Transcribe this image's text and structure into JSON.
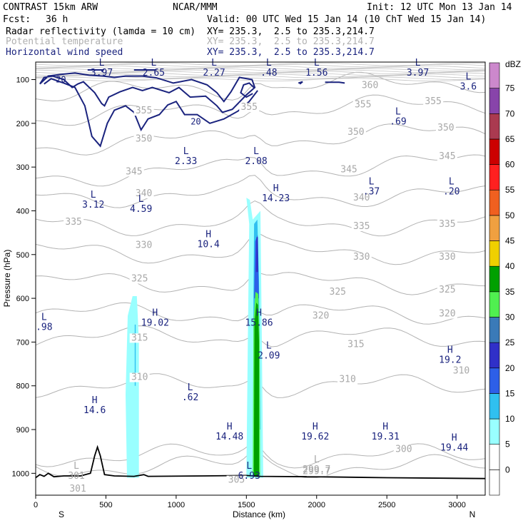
{
  "header": {
    "title": "CONTRAST 15km ARW",
    "org": "NCAR/MMM",
    "init": "Init: 12 UTC Mon 13 Jan 14",
    "fcst_label": "Fcst:",
    "fcst_value": "36 h",
    "valid": "Valid: 00 UTC Wed 15 Jan 14 (10 ChT Wed 15 Jan 14)",
    "fields": [
      {
        "name": "Radar reflectivity (lamda = 10 cm)",
        "xy": "XY= 235.3,  2.5 to 235.3,214.7",
        "color": "#000000"
      },
      {
        "name": "Potential temperature",
        "xy": "XY= 235.3,  2.5 to 235.3,214.7",
        "color": "#b0b0b0"
      },
      {
        "name": "Horizontal wind speed",
        "xy": "XY= 235.3,  2.5 to 235.3,214.7",
        "color": "#1a237e"
      }
    ]
  },
  "chart_data": {
    "type": "cross-section",
    "xlabel": "Distance (km)",
    "ylabel": "Pressure (hPa)",
    "xlim": [
      0,
      3200
    ],
    "ylim": [
      1050,
      60
    ],
    "x_ticks": [
      "0",
      "500",
      "1000",
      "1500",
      "2000",
      "2500",
      "3000"
    ],
    "y_ticks": [
      "100",
      "200",
      "300",
      "400",
      "500",
      "600",
      "700",
      "800",
      "900",
      "1000"
    ],
    "end_labels": {
      "left": "S",
      "right": "N"
    },
    "colorbar": {
      "title": "dBZ",
      "levels": [
        "0",
        "5",
        "10",
        "15",
        "20",
        "25",
        "30",
        "35",
        "40",
        "45",
        "50",
        "55",
        "60",
        "65",
        "70",
        "75"
      ],
      "colors": [
        "#ffffff",
        "#99ffff",
        "#30c0f0",
        "#2d5fe8",
        "#3030c8",
        "#3a7ab8",
        "#50f050",
        "#00a000",
        "#f0d000",
        "#f0a040",
        "#f06020",
        "#ff2020",
        "#cc0000",
        "#aa3a50",
        "#8844aa",
        "#cc88cc"
      ]
    },
    "theta_contours": [
      300,
      305,
      310,
      315,
      320,
      325,
      330,
      335,
      340,
      345,
      350,
      355,
      360
    ],
    "theta_labels": [
      {
        "text": "360",
        "x": 2380,
        "p": 118
      },
      {
        "text": "355",
        "x": 2830,
        "p": 155
      },
      {
        "text": "355",
        "x": 2330,
        "p": 162
      },
      {
        "text": "355",
        "x": 1520,
        "p": 168
      },
      {
        "text": "355",
        "x": 770,
        "p": 176
      },
      {
        "text": "350",
        "x": 2920,
        "p": 215
      },
      {
        "text": "350",
        "x": 2280,
        "p": 225
      },
      {
        "text": "350",
        "x": 770,
        "p": 240
      },
      {
        "text": "345",
        "x": 2930,
        "p": 280
      },
      {
        "text": "345",
        "x": 2230,
        "p": 310
      },
      {
        "text": "345",
        "x": 700,
        "p": 315
      },
      {
        "text": "340",
        "x": 2320,
        "p": 375
      },
      {
        "text": "340",
        "x": 770,
        "p": 365
      },
      {
        "text": "335",
        "x": 2930,
        "p": 435
      },
      {
        "text": "335",
        "x": 2320,
        "p": 440
      },
      {
        "text": "335",
        "x": 270,
        "p": 430
      },
      {
        "text": "330",
        "x": 2930,
        "p": 510
      },
      {
        "text": "330",
        "x": 2320,
        "p": 510
      },
      {
        "text": "330",
        "x": 770,
        "p": 483
      },
      {
        "text": "325",
        "x": 2930,
        "p": 585
      },
      {
        "text": "325",
        "x": 2150,
        "p": 590
      },
      {
        "text": "325",
        "x": 740,
        "p": 560
      },
      {
        "text": "320",
        "x": 2930,
        "p": 640
      },
      {
        "text": "320",
        "x": 2030,
        "p": 645
      },
      {
        "text": "315",
        "x": 2280,
        "p": 710
      },
      {
        "text": "315",
        "x": 740,
        "p": 695
      },
      {
        "text": "310",
        "x": 3030,
        "p": 770
      },
      {
        "text": "310",
        "x": 2220,
        "p": 790
      },
      {
        "text": "310",
        "x": 740,
        "p": 785
      },
      {
        "text": "300",
        "x": 2620,
        "p": 950
      },
      {
        "text": "299.7",
        "x": 2000,
        "p": 1000
      },
      {
        "text": "301",
        "x": 300,
        "p": 1040
      },
      {
        "text": "305",
        "x": 1430,
        "p": 1020
      }
    ],
    "extrema_theta": [
      {
        "type": "L",
        "value": "299.7",
        "x": 2000,
        "p": 975
      },
      {
        "type": "L",
        "value": "301",
        "x": 290,
        "p": 990
      }
    ],
    "extrema_wind": [
      {
        "type": "L",
        "value": "3.97",
        "x": 470,
        "p": 68
      },
      {
        "type": "L",
        "value": "2.65",
        "x": 840,
        "p": 68
      },
      {
        "type": "L",
        "value": "2.27",
        "x": 1270,
        "p": 68
      },
      {
        "type": "L",
        "value": ".48",
        "x": 1660,
        "p": 68
      },
      {
        "type": "L",
        "value": "1.56",
        "x": 2000,
        "p": 68
      },
      {
        "type": "L",
        "value": "3.97",
        "x": 2720,
        "p": 68
      },
      {
        "type": "L",
        "value": "3.6",
        "x": 3080,
        "p": 100
      },
      {
        "type": "L",
        "value": ".69",
        "x": 2580,
        "p": 180
      },
      {
        "type": "L",
        "value": "2.33",
        "x": 1070,
        "p": 270
      },
      {
        "type": "L",
        "value": "2.08",
        "x": 1570,
        "p": 270
      },
      {
        "type": "L",
        "value": ".37",
        "x": 2390,
        "p": 340
      },
      {
        "type": "L",
        "value": ".20",
        "x": 2960,
        "p": 340
      },
      {
        "type": "L",
        "value": "3.12",
        "x": 410,
        "p": 370
      },
      {
        "type": "L",
        "value": "4.59",
        "x": 750,
        "p": 380
      },
      {
        "type": "H",
        "value": "14.23",
        "x": 1710,
        "p": 355
      },
      {
        "type": "H",
        "value": "10.4",
        "x": 1230,
        "p": 460
      },
      {
        "type": "H",
        "value": "19.02",
        "x": 850,
        "p": 640
      },
      {
        "type": "H",
        "value": "15.86",
        "x": 1590,
        "p": 640
      },
      {
        "type": "L",
        "value": ".98",
        "x": 60,
        "p": 650
      },
      {
        "type": "L",
        "value": "2.09",
        "x": 1660,
        "p": 715
      },
      {
        "type": "H",
        "value": "19.2",
        "x": 2950,
        "p": 725
      },
      {
        "type": "L",
        "value": ".62",
        "x": 1100,
        "p": 810
      },
      {
        "type": "H",
        "value": "14.6",
        "x": 420,
        "p": 840
      },
      {
        "type": "H",
        "value": "14.48",
        "x": 1380,
        "p": 900
      },
      {
        "type": "H",
        "value": "19.62",
        "x": 1990,
        "p": 900
      },
      {
        "type": "H",
        "value": "19.31",
        "x": 2490,
        "p": 900
      },
      {
        "type": "H",
        "value": "19.44",
        "x": 2980,
        "p": 925
      },
      {
        "type": "L",
        "value": "6.93",
        "x": 1520,
        "p": 990
      }
    ],
    "wind_contour_labels": [
      {
        "text": "20",
        "x": 180,
        "p": 100
      },
      {
        "text": "20",
        "x": 1140,
        "p": 196
      }
    ]
  }
}
